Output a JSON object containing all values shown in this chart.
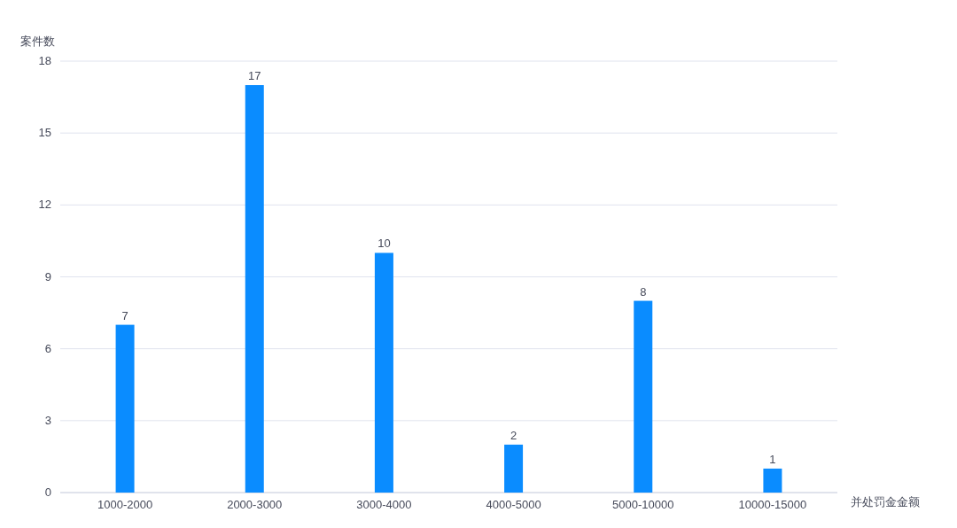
{
  "chart_data": {
    "type": "bar",
    "xlabel": "并处罚金金额",
    "ylabel": "案件数",
    "categories": [
      "1000-2000",
      "2000-3000",
      "3000-4000",
      "4000-5000",
      "5000-10000",
      "10000-15000"
    ],
    "values": [
      7,
      17,
      10,
      2,
      8,
      1
    ],
    "color": "#0a8cff",
    "ylim": [
      0,
      18
    ],
    "yticks": [
      0,
      3,
      6,
      9,
      12,
      15,
      18
    ],
    "grid": "y",
    "data_labels": true
  }
}
